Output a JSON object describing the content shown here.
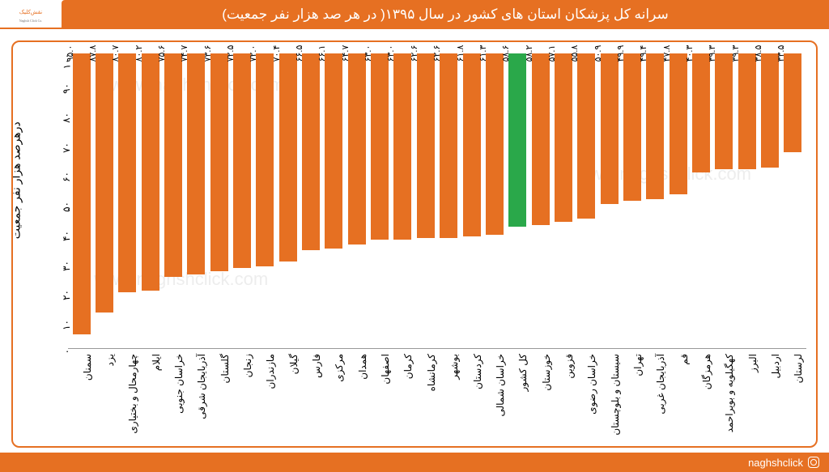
{
  "header": {
    "title": "سرانه کل پزشکان استان های کشور در سال ۱۳۹۵( در هر صد هزار نفر جمعیت)",
    "brand_color": "#e67022",
    "logo_alt": "NaghshClick Co."
  },
  "chart": {
    "type": "bar",
    "y_label": "درهرصد هزار نفر جمعیت",
    "ylim": [
      0,
      100
    ],
    "ytick_step": 10,
    "yticks": [
      "۰",
      "۱۰",
      "۲۰",
      "۳۰",
      "۴۰",
      "۵۰",
      "۶۰",
      "۷۰",
      "۸۰",
      "۹۰",
      "۱۰۰"
    ],
    "bar_color": "#e67022",
    "highlight_color": "#2aa84a",
    "background_color": "#ffffff",
    "border_color": "#e67022",
    "watermark_text": "www.naghshclick.com",
    "watermark_color": "#cccccc",
    "label_fontsize": 12,
    "value_fontsize": 11,
    "bar_width": 0.7,
    "data": [
      {
        "label": "سمنان",
        "value": 95.0,
        "display": "۹۵.۰"
      },
      {
        "label": "یزد",
        "value": 87.8,
        "display": "۸۷.۸"
      },
      {
        "label": "چهارمحال و بختیاری",
        "value": 80.7,
        "display": "۸۰.۷"
      },
      {
        "label": "ایلام",
        "value": 80.2,
        "display": "۸۰.۲"
      },
      {
        "label": "خراسان جنوبی",
        "value": 75.6,
        "display": "۷۵.۶"
      },
      {
        "label": "آذربایجان شرقی",
        "value": 74.7,
        "display": "۷۴.۷"
      },
      {
        "label": "گلستان",
        "value": 73.6,
        "display": "۷۳.۶"
      },
      {
        "label": "زنجان",
        "value": 72.5,
        "display": "۷۲.۵"
      },
      {
        "label": "مازندران",
        "value": 72.0,
        "display": "۷۲.۰"
      },
      {
        "label": "گیلان",
        "value": 70.4,
        "display": "۷۰.۴"
      },
      {
        "label": "فارس",
        "value": 66.5,
        "display": "۶۶.۵"
      },
      {
        "label": "مرکزی",
        "value": 66.1,
        "display": "۶۶.۱"
      },
      {
        "label": "همدان",
        "value": 64.7,
        "display": "۶۴.۷"
      },
      {
        "label": "اصفهان",
        "value": 63.0,
        "display": "۶۳.۰"
      },
      {
        "label": "کرمان",
        "value": 63.0,
        "display": "۶۳.۰"
      },
      {
        "label": "کرمانشاه",
        "value": 62.6,
        "display": "۶۲.۶"
      },
      {
        "label": "بوشهر",
        "value": 62.6,
        "display": "۶۲.۶"
      },
      {
        "label": "کردستان",
        "value": 61.8,
        "display": "۶۱.۸"
      },
      {
        "label": "خراسان شمالی",
        "value": 61.3,
        "display": "۶۱.۳"
      },
      {
        "label": "کل کشور",
        "value": 58.6,
        "display": "۵۸.۶",
        "highlight": true
      },
      {
        "label": "خوزستان",
        "value": 58.2,
        "display": "۵۸.۲"
      },
      {
        "label": "قزوین",
        "value": 57.1,
        "display": "۵۷.۱"
      },
      {
        "label": "خراسان رضوی",
        "value": 55.8,
        "display": "۵۵.۸"
      },
      {
        "label": "سیستان و بلوچستان",
        "value": 50.9,
        "display": "۵۰.۹"
      },
      {
        "label": "تهران",
        "value": 49.9,
        "display": "۴۹.۹"
      },
      {
        "label": "آذربایجان غربی",
        "value": 49.4,
        "display": "۴۹.۴"
      },
      {
        "label": "قم",
        "value": 47.8,
        "display": "۴۷.۸"
      },
      {
        "label": "هرمزگان",
        "value": 40.3,
        "display": "۴۰.۳"
      },
      {
        "label": "کهگیلویه و بویراحمد",
        "value": 39.3,
        "display": "۳۹.۳"
      },
      {
        "label": "البرز",
        "value": 39.3,
        "display": "۳۹.۳"
      },
      {
        "label": "اردبیل",
        "value": 38.5,
        "display": "۳۸.۵"
      },
      {
        "label": "لرستان",
        "value": 33.5,
        "display": "۳۳.۵"
      }
    ]
  },
  "footer": {
    "handle": "naghshclick",
    "icon": "instagram-icon",
    "bg_color": "#e67022",
    "text_color": "#ffffff"
  }
}
